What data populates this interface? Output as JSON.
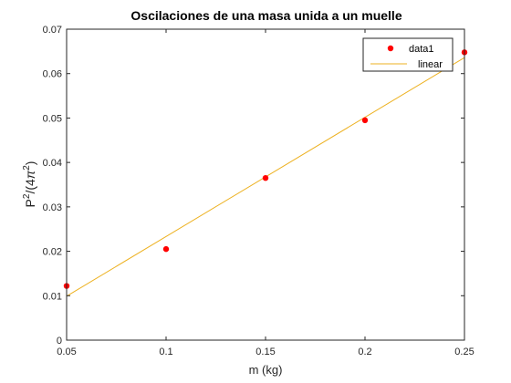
{
  "chart_data": {
    "type": "scatter",
    "title": "Oscilaciones de una masa unida a un muelle",
    "xlabel": "m (kg)",
    "ylabel": {
      "base": "P",
      "sup1": "2",
      "mid": "/(4",
      "pi": "π",
      "sup2": "2",
      "end": ")"
    },
    "xlim": [
      0.05,
      0.25
    ],
    "ylim": [
      0,
      0.07
    ],
    "xticks": [
      0.05,
      0.1,
      0.15,
      0.2,
      0.25
    ],
    "xtick_labels": [
      "0.05",
      "0.1",
      "0.15",
      "0.2",
      "0.25"
    ],
    "yticks": [
      0,
      0.01,
      0.02,
      0.03,
      0.04,
      0.05,
      0.06,
      0.07
    ],
    "ytick_labels": [
      "0",
      "0.01",
      "0.02",
      "0.03",
      "0.04",
      "0.05",
      "0.06",
      "0.07"
    ],
    "grid": false,
    "legend_position": "top-right",
    "series": [
      {
        "name": "data1",
        "kind": "markers",
        "color": "#ff0000",
        "x": [
          0.05,
          0.1,
          0.15,
          0.2,
          0.25
        ],
        "y": [
          0.0122,
          0.0205,
          0.0365,
          0.0495,
          0.0648
        ]
      },
      {
        "name": "linear",
        "kind": "line",
        "color": "#edb120",
        "x": [
          0.05,
          0.25
        ],
        "y": [
          0.0099,
          0.0636
        ]
      }
    ]
  }
}
